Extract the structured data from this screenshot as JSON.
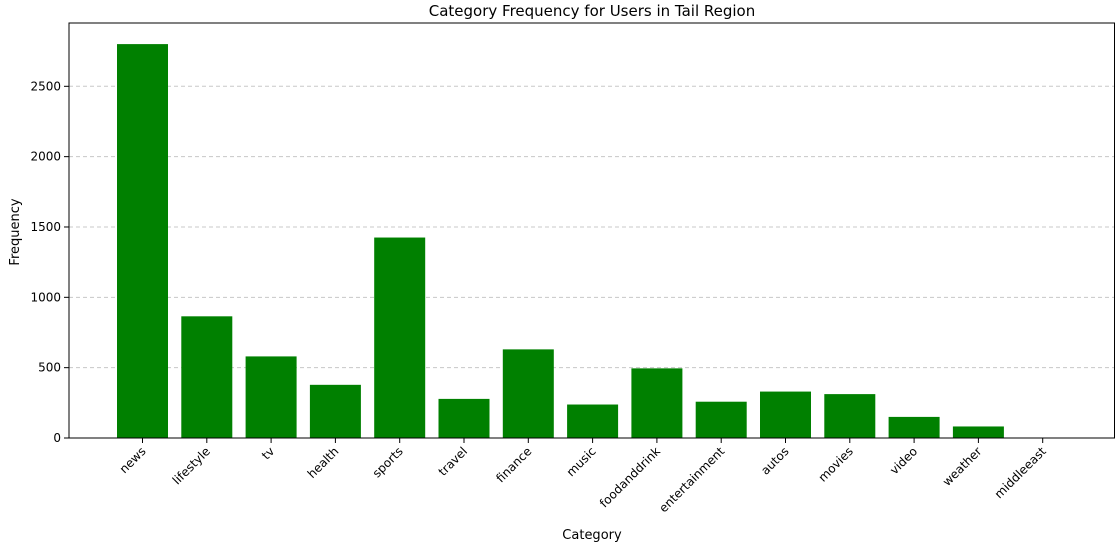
{
  "chart_data": {
    "type": "bar",
    "title": "Category Frequency for Users in Tail Region",
    "xlabel": "Category",
    "ylabel": "Frequency",
    "categories": [
      "news",
      "lifestyle",
      "tv",
      "health",
      "sports",
      "travel",
      "finance",
      "music",
      "foodanddrink",
      "entertainment",
      "autos",
      "movies",
      "video",
      "weather",
      "middleeast"
    ],
    "values": [
      2800,
      865,
      580,
      378,
      1425,
      278,
      630,
      238,
      495,
      258,
      330,
      312,
      150,
      82,
      0
    ],
    "ylim": [
      0,
      2950
    ],
    "yticks": [
      0,
      500,
      1000,
      1500,
      2000,
      2500
    ],
    "bar_color": "#008000",
    "grid": "y-dashed"
  }
}
